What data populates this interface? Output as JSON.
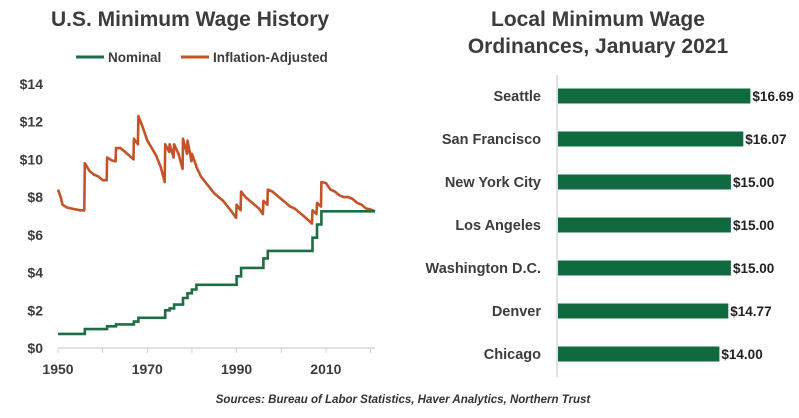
{
  "source_note": "Sources: Bureau of Labor Statistics, Haver Analytics, Northern Trust",
  "colors": {
    "nominal": "#1f6d44",
    "inflation": "#c5532a",
    "bar": "#0f6a3f",
    "axis": "#cfcfcf",
    "text": "#3c3c3c"
  },
  "chart_data": [
    {
      "type": "line",
      "title": "U.S. Minimum Wage History",
      "xlabel": "",
      "ylabel": "",
      "xlim": [
        1950,
        2021
      ],
      "ylim": [
        0,
        14
      ],
      "x_ticks": [
        1950,
        1970,
        1990,
        2010
      ],
      "x_tick_labels": [
        "1950",
        "1970",
        "1990",
        "2010"
      ],
      "y_ticks": [
        0,
        2,
        4,
        6,
        8,
        10,
        12,
        14
      ],
      "y_tick_labels": [
        "$0",
        "$2",
        "$4",
        "$6",
        "$8",
        "$10",
        "$12",
        "$14"
      ],
      "legend": "top",
      "grid": false,
      "series": [
        {
          "name": "Nominal",
          "step": true,
          "points": [
            [
              1950,
              0.75
            ],
            [
              1956,
              1.0
            ],
            [
              1961,
              1.15
            ],
            [
              1963,
              1.25
            ],
            [
              1967,
              1.4
            ],
            [
              1968,
              1.6
            ],
            [
              1974,
              2.0
            ],
            [
              1975,
              2.1
            ],
            [
              1976,
              2.3
            ],
            [
              1978,
              2.65
            ],
            [
              1979,
              2.9
            ],
            [
              1980,
              3.1
            ],
            [
              1981,
              3.35
            ],
            [
              1990,
              3.8
            ],
            [
              1991,
              4.25
            ],
            [
              1996,
              4.75
            ],
            [
              1997,
              5.15
            ],
            [
              2007,
              5.85
            ],
            [
              2008,
              6.55
            ],
            [
              2009,
              7.25
            ],
            [
              2021,
              7.25
            ]
          ]
        },
        {
          "name": "Inflation-Adjusted",
          "step": false,
          "points": [
            [
              1950,
              8.4
            ],
            [
              1950.6,
              8.0
            ],
            [
              1951,
              7.6
            ],
            [
              1952,
              7.45
            ],
            [
              1953,
              7.4
            ],
            [
              1955,
              7.3
            ],
            [
              1955.9,
              7.3
            ],
            [
              1956,
              9.8
            ],
            [
              1957,
              9.4
            ],
            [
              1958,
              9.2
            ],
            [
              1959,
              9.1
            ],
            [
              1960,
              8.9
            ],
            [
              1960.9,
              8.9
            ],
            [
              1961,
              10.1
            ],
            [
              1962,
              9.95
            ],
            [
              1962.9,
              9.9
            ],
            [
              1963,
              10.6
            ],
            [
              1964,
              10.6
            ],
            [
              1965,
              10.4
            ],
            [
              1966,
              10.2
            ],
            [
              1966.9,
              10.0
            ],
            [
              1967,
              11.1
            ],
            [
              1967.9,
              10.8
            ],
            [
              1968,
              12.3
            ],
            [
              1969,
              11.7
            ],
            [
              1970,
              11.0
            ],
            [
              1971,
              10.6
            ],
            [
              1972,
              10.2
            ],
            [
              1973,
              9.6
            ],
            [
              1973.9,
              8.8
            ],
            [
              1974,
              10.8
            ],
            [
              1974.9,
              10.4
            ],
            [
              1975,
              10.8
            ],
            [
              1975.9,
              10.1
            ],
            [
              1976,
              10.8
            ],
            [
              1977,
              10.3
            ],
            [
              1977.9,
              9.5
            ],
            [
              1978,
              11.1
            ],
            [
              1978.9,
              10.3
            ],
            [
              1979,
              11.0
            ],
            [
              1979.9,
              9.9
            ],
            [
              1980,
              10.3
            ],
            [
              1980.9,
              9.7
            ],
            [
              1981,
              9.6
            ],
            [
              1982,
              9.1
            ],
            [
              1983,
              8.8
            ],
            [
              1984,
              8.5
            ],
            [
              1985,
              8.2
            ],
            [
              1986,
              8.0
            ],
            [
              1987,
              7.8
            ],
            [
              1988,
              7.5
            ],
            [
              1989,
              7.2
            ],
            [
              1989.9,
              6.9
            ],
            [
              1990,
              7.6
            ],
            [
              1990.9,
              7.3
            ],
            [
              1991,
              8.3
            ],
            [
              1992,
              8.0
            ],
            [
              1993,
              7.8
            ],
            [
              1994,
              7.6
            ],
            [
              1995,
              7.4
            ],
            [
              1995.9,
              7.1
            ],
            [
              1996,
              7.8
            ],
            [
              1996.9,
              7.6
            ],
            [
              1997,
              8.4
            ],
            [
              1998,
              8.3
            ],
            [
              1999,
              8.1
            ],
            [
              2000,
              7.9
            ],
            [
              2001,
              7.7
            ],
            [
              2002,
              7.5
            ],
            [
              2003,
              7.4
            ],
            [
              2004,
              7.2
            ],
            [
              2005,
              7.0
            ],
            [
              2006,
              6.8
            ],
            [
              2006.9,
              6.6
            ],
            [
              2007,
              7.3
            ],
            [
              2007.9,
              7.1
            ],
            [
              2008,
              7.7
            ],
            [
              2008.9,
              7.5
            ],
            [
              2009,
              8.8
            ],
            [
              2010,
              8.75
            ],
            [
              2011,
              8.4
            ],
            [
              2012,
              8.3
            ],
            [
              2013,
              8.1
            ],
            [
              2014,
              8.0
            ],
            [
              2015,
              8.0
            ],
            [
              2016,
              7.9
            ],
            [
              2017,
              7.7
            ],
            [
              2018,
              7.6
            ],
            [
              2019,
              7.4
            ],
            [
              2020,
              7.35
            ],
            [
              2021,
              7.25
            ]
          ]
        }
      ]
    },
    {
      "type": "bar",
      "orientation": "horizontal",
      "title": "Local Minimum Wage Ordinances, January 2021",
      "title_lines": [
        "Local Minimum Wage",
        "Ordinances, January 2021"
      ],
      "xlim": [
        0,
        17
      ],
      "grid": false,
      "categories": [
        "Seattle",
        "San Francisco",
        "New York City",
        "Los Angeles",
        "Washington D.C.",
        "Denver",
        "Chicago"
      ],
      "values": [
        16.69,
        16.07,
        15.0,
        15.0,
        15.0,
        14.77,
        14.0
      ],
      "value_labels": [
        "$16.69",
        "$16.07",
        "$15.00",
        "$15.00",
        "$15.00",
        "$14.77",
        "$14.00"
      ]
    }
  ]
}
